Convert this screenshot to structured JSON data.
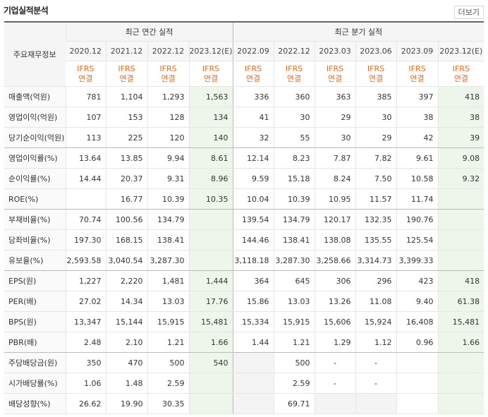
{
  "section_title": "기업실적분석",
  "more_button": "더보기",
  "row_header_label": "주요재무정보",
  "annual_label": "최근 연간 실적",
  "quarter_label": "최근 분기 실적",
  "periods": [
    "2020.12",
    "2021.12",
    "2022.12",
    "2023.12(E)",
    "2022.09",
    "2022.12",
    "2023.03",
    "2023.06",
    "2023.09",
    "2023.12(E)"
  ],
  "basis_top": "IFRS",
  "basis_bottom": "연결",
  "estimate_columns": [
    3,
    9
  ],
  "rows": [
    {
      "label": "매출액(억원)",
      "values": [
        "781",
        "1,104",
        "1,293",
        "1,563",
        "336",
        "360",
        "363",
        "385",
        "397",
        "418"
      ]
    },
    {
      "label": "영업이익(억원)",
      "values": [
        "107",
        "153",
        "128",
        "134",
        "41",
        "30",
        "29",
        "30",
        "38",
        "38"
      ]
    },
    {
      "label": "당기순이익(억원)",
      "values": [
        "113",
        "225",
        "120",
        "140",
        "32",
        "55",
        "30",
        "29",
        "42",
        "39"
      ],
      "group_end": true
    },
    {
      "label": "영업이익률(%)",
      "values": [
        "13.64",
        "13.85",
        "9.94",
        "8.61",
        "12.14",
        "8.23",
        "7.87",
        "7.82",
        "9.61",
        "9.08"
      ]
    },
    {
      "label": "순이익률(%)",
      "values": [
        "14.44",
        "20.37",
        "9.31",
        "8.96",
        "9.59",
        "15.18",
        "8.24",
        "7.50",
        "10.58",
        "9.32"
      ]
    },
    {
      "label": "ROE(%)",
      "values": [
        "",
        "16.77",
        "10.39",
        "10.35",
        "10.04",
        "10.39",
        "10.95",
        "11.57",
        "11.74",
        ""
      ],
      "group_end": true
    },
    {
      "label": "부채비율(%)",
      "values": [
        "70.74",
        "100.56",
        "134.79",
        "",
        "139.54",
        "134.79",
        "120.17",
        "132.35",
        "190.76",
        ""
      ]
    },
    {
      "label": "당좌비율(%)",
      "values": [
        "197.30",
        "168.15",
        "138.41",
        "",
        "144.46",
        "138.41",
        "138.08",
        "135.55",
        "125.54",
        ""
      ]
    },
    {
      "label": "유보율(%)",
      "values": [
        "2,593.58",
        "3,040.54",
        "3,287.30",
        "",
        "3,118.18",
        "3,287.30",
        "3,258.66",
        "3,314.73",
        "3,399.33",
        ""
      ],
      "group_end": true
    },
    {
      "label": "EPS(원)",
      "values": [
        "1,227",
        "2,220",
        "1,481",
        "1,444",
        "364",
        "645",
        "306",
        "296",
        "423",
        "418"
      ]
    },
    {
      "label": "PER(배)",
      "values": [
        "27.02",
        "14.34",
        "13.03",
        "17.76",
        "15.86",
        "13.03",
        "13.26",
        "11.08",
        "9.40",
        "61.38"
      ]
    },
    {
      "label": "BPS(원)",
      "values": [
        "13,347",
        "15,144",
        "15,915",
        "15,481",
        "15,334",
        "15,915",
        "15,606",
        "15,924",
        "16,408",
        "15,481"
      ]
    },
    {
      "label": "PBR(배)",
      "values": [
        "2.48",
        "2.10",
        "1.21",
        "1.66",
        "1.44",
        "1.21",
        "1.29",
        "1.12",
        "0.96",
        "1.66"
      ],
      "group_end": true
    },
    {
      "label": "주당배당금(원)",
      "values": [
        "350",
        "470",
        "500",
        "540",
        "",
        "500",
        "-",
        "-",
        "",
        ""
      ]
    },
    {
      "label": "시가배당률(%)",
      "values": [
        "1.06",
        "1.48",
        "2.59",
        "",
        "",
        "2.59",
        "-",
        "-",
        "",
        ""
      ]
    },
    {
      "label": "배당성향(%)",
      "values": [
        "26.62",
        "19.90",
        "30.35",
        "",
        "",
        "69.71",
        "",
        "",
        "",
        ""
      ]
    }
  ]
}
